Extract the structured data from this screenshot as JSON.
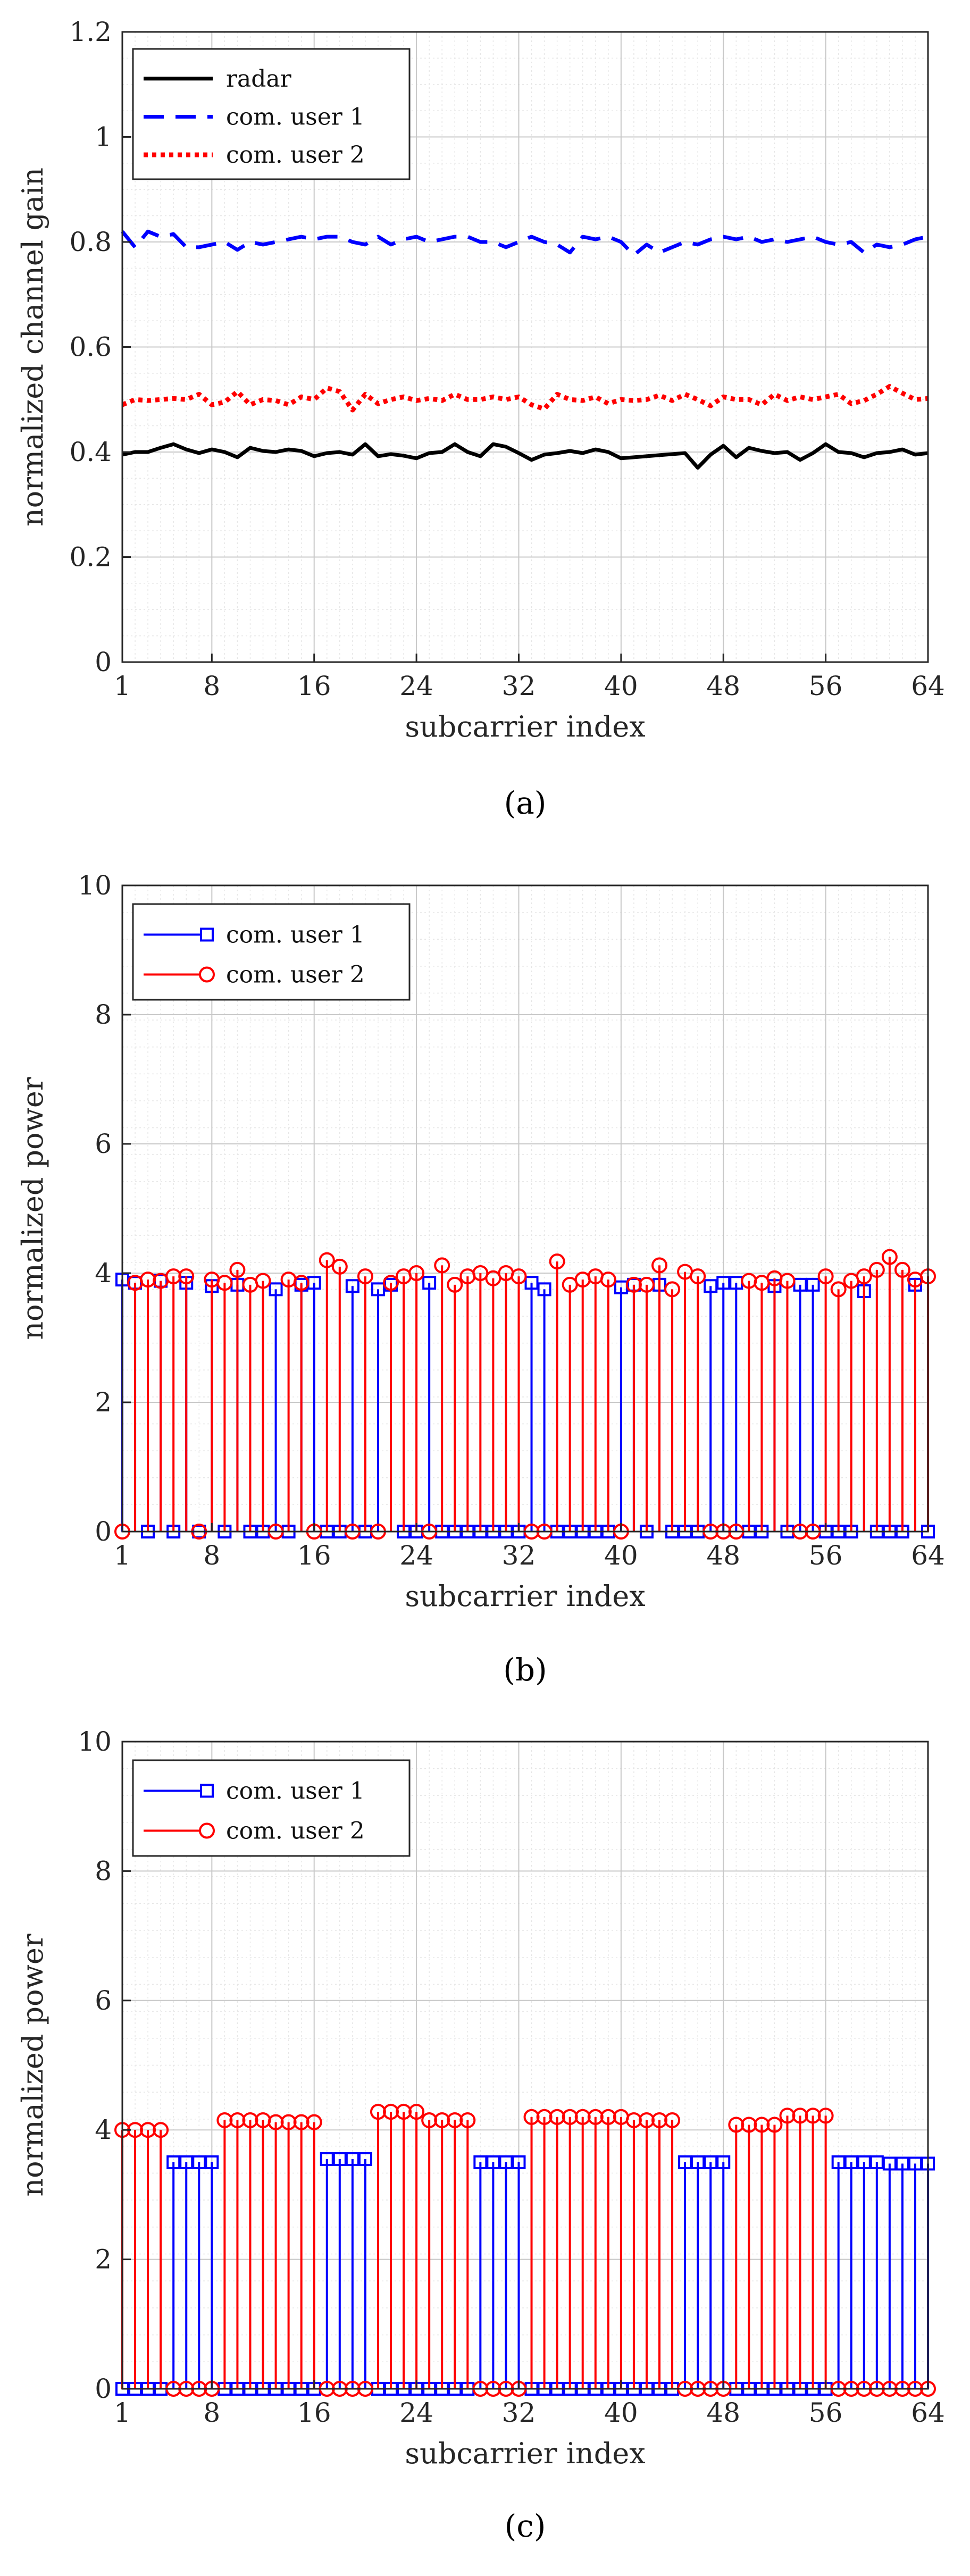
{
  "chart_data": [
    {
      "type": "line",
      "caption": "(a)",
      "xlabel": "subcarrier index",
      "ylabel": "normalized channel gain",
      "xlim": [
        1,
        64
      ],
      "ylim": [
        0,
        1.2
      ],
      "xticks": [
        1,
        8,
        16,
        24,
        32,
        40,
        48,
        56,
        64
      ],
      "yticks": [
        0,
        0.2,
        0.4,
        0.6,
        0.8,
        1,
        1.2
      ],
      "ytick_labels": [
        "0",
        "0.2",
        "0.4",
        "0.6",
        "0.8",
        "1",
        "1.2"
      ],
      "grid": true,
      "legend_position": "top-left",
      "x": [
        1,
        2,
        3,
        4,
        5,
        6,
        7,
        8,
        9,
        10,
        11,
        12,
        13,
        14,
        15,
        16,
        17,
        18,
        19,
        20,
        21,
        22,
        23,
        24,
        25,
        26,
        27,
        28,
        29,
        30,
        31,
        32,
        33,
        34,
        35,
        36,
        37,
        38,
        39,
        40,
        41,
        42,
        43,
        44,
        45,
        46,
        47,
        48,
        49,
        50,
        51,
        52,
        53,
        54,
        55,
        56,
        57,
        58,
        59,
        60,
        61,
        62,
        63,
        64
      ],
      "series": [
        {
          "name": "radar",
          "color": "#000000",
          "style": "solid",
          "values": [
            0.395,
            0.4,
            0.4,
            0.408,
            0.415,
            0.405,
            0.398,
            0.405,
            0.4,
            0.39,
            0.408,
            0.402,
            0.4,
            0.405,
            0.402,
            0.392,
            0.398,
            0.4,
            0.395,
            0.415,
            0.392,
            0.396,
            0.393,
            0.388,
            0.398,
            0.4,
            0.415,
            0.4,
            0.392,
            0.415,
            0.41,
            0.398,
            0.385,
            0.395,
            0.398,
            0.402,
            0.398,
            0.405,
            0.4,
            0.388,
            0.39,
            0.392,
            0.394,
            0.396,
            0.398,
            0.37,
            0.395,
            0.412,
            0.39,
            0.408,
            0.402,
            0.398,
            0.4,
            0.385,
            0.398,
            0.415,
            0.4,
            0.398,
            0.39,
            0.398,
            0.4,
            0.405,
            0.395,
            0.398
          ]
        },
        {
          "name": "com. user 1",
          "color": "#0000ff",
          "style": "dashed",
          "values": [
            0.82,
            0.79,
            0.82,
            0.81,
            0.815,
            0.79,
            0.79,
            0.795,
            0.8,
            0.785,
            0.8,
            0.795,
            0.8,
            0.805,
            0.81,
            0.805,
            0.81,
            0.81,
            0.8,
            0.795,
            0.81,
            0.795,
            0.805,
            0.81,
            0.8,
            0.805,
            0.81,
            0.81,
            0.8,
            0.8,
            0.79,
            0.8,
            0.81,
            0.8,
            0.795,
            0.78,
            0.81,
            0.805,
            0.81,
            0.8,
            0.775,
            0.795,
            0.78,
            0.79,
            0.8,
            0.795,
            0.805,
            0.81,
            0.805,
            0.81,
            0.8,
            0.805,
            0.8,
            0.805,
            0.81,
            0.8,
            0.795,
            0.8,
            0.78,
            0.795,
            0.79,
            0.795,
            0.805,
            0.81
          ]
        },
        {
          "name": "com. user 2",
          "color": "#ff0000",
          "style": "dotted",
          "values": [
            0.49,
            0.5,
            0.498,
            0.5,
            0.502,
            0.5,
            0.51,
            0.49,
            0.495,
            0.515,
            0.49,
            0.5,
            0.498,
            0.49,
            0.505,
            0.5,
            0.522,
            0.515,
            0.48,
            0.51,
            0.492,
            0.5,
            0.505,
            0.498,
            0.502,
            0.498,
            0.51,
            0.5,
            0.5,
            0.505,
            0.5,
            0.505,
            0.49,
            0.482,
            0.51,
            0.5,
            0.498,
            0.505,
            0.492,
            0.5,
            0.498,
            0.5,
            0.508,
            0.498,
            0.51,
            0.5,
            0.488,
            0.505,
            0.5,
            0.5,
            0.49,
            0.51,
            0.498,
            0.505,
            0.5,
            0.505,
            0.51,
            0.492,
            0.498,
            0.51,
            0.525,
            0.512,
            0.5,
            0.502
          ]
        }
      ]
    },
    {
      "type": "stem",
      "caption": "(b)",
      "xlabel": "subcarrier index",
      "ylabel": "normalized power",
      "xlim": [
        1,
        64
      ],
      "ylim": [
        0,
        10
      ],
      "xticks": [
        1,
        8,
        16,
        24,
        32,
        40,
        48,
        56,
        64
      ],
      "yticks": [
        0,
        2,
        4,
        6,
        8,
        10
      ],
      "ytick_labels": [
        "0",
        "2",
        "4",
        "6",
        "8",
        "10"
      ],
      "grid": true,
      "legend_position": "top-left",
      "x": [
        1,
        2,
        3,
        4,
        5,
        6,
        7,
        8,
        9,
        10,
        11,
        12,
        13,
        14,
        15,
        16,
        17,
        18,
        19,
        20,
        21,
        22,
        23,
        24,
        25,
        26,
        27,
        28,
        29,
        30,
        31,
        32,
        33,
        34,
        35,
        36,
        37,
        38,
        39,
        40,
        41,
        42,
        43,
        44,
        45,
        46,
        47,
        48,
        49,
        50,
        51,
        52,
        53,
        54,
        55,
        56,
        57,
        58,
        59,
        60,
        61,
        62,
        63,
        64
      ],
      "series": [
        {
          "name": "com. user 1",
          "color": "#0000ff",
          "marker": "square",
          "values": [
            3.9,
            3.85,
            0,
            3.88,
            0,
            3.85,
            0,
            3.8,
            0,
            3.82,
            0,
            0,
            3.75,
            0,
            3.82,
            3.85,
            0,
            0,
            3.8,
            0,
            3.75,
            3.82,
            0,
            0,
            3.85,
            0,
            0,
            0,
            0,
            0,
            0,
            0,
            3.85,
            3.75,
            0,
            0,
            0,
            0,
            0,
            3.78,
            3.82,
            0,
            3.82,
            0,
            0,
            0,
            3.8,
            3.85,
            3.85,
            0,
            0,
            3.8,
            0,
            3.82,
            3.82,
            0,
            0,
            0,
            3.72,
            0,
            0,
            0,
            3.82,
            0
          ]
        },
        {
          "name": "com. user 2",
          "color": "#ff0000",
          "marker": "circle",
          "values": [
            0,
            3.85,
            3.9,
            3.88,
            3.95,
            3.95,
            0,
            3.9,
            3.85,
            4.05,
            3.82,
            3.88,
            0,
            3.9,
            3.85,
            0,
            4.2,
            4.1,
            0,
            3.95,
            0,
            3.85,
            3.95,
            4.0,
            0,
            4.12,
            3.82,
            3.95,
            4.0,
            3.92,
            4.0,
            3.95,
            0,
            0,
            4.18,
            3.82,
            3.9,
            3.95,
            3.9,
            0,
            3.82,
            3.82,
            4.12,
            3.75,
            4.02,
            3.95,
            0,
            0,
            0,
            3.88,
            3.85,
            3.92,
            3.88,
            0,
            0,
            3.95,
            3.75,
            3.88,
            3.95,
            4.05,
            4.25,
            4.05,
            3.9,
            3.95
          ]
        }
      ]
    },
    {
      "type": "stem",
      "caption": "(c)",
      "xlabel": "subcarrier index",
      "ylabel": "normalized power",
      "xlim": [
        1,
        64
      ],
      "ylim": [
        0,
        10
      ],
      "xticks": [
        1,
        8,
        16,
        24,
        32,
        40,
        48,
        56,
        64
      ],
      "yticks": [
        0,
        2,
        4,
        6,
        8,
        10
      ],
      "ytick_labels": [
        "0",
        "2",
        "4",
        "6",
        "8",
        "10"
      ],
      "grid": true,
      "legend_position": "top-left",
      "x": [
        1,
        2,
        3,
        4,
        5,
        6,
        7,
        8,
        9,
        10,
        11,
        12,
        13,
        14,
        15,
        16,
        17,
        18,
        19,
        20,
        21,
        22,
        23,
        24,
        25,
        26,
        27,
        28,
        29,
        30,
        31,
        32,
        33,
        34,
        35,
        36,
        37,
        38,
        39,
        40,
        41,
        42,
        43,
        44,
        45,
        46,
        47,
        48,
        49,
        50,
        51,
        52,
        53,
        54,
        55,
        56,
        57,
        58,
        59,
        60,
        61,
        62,
        63,
        64
      ],
      "series": [
        {
          "name": "com. user 1",
          "color": "#0000ff",
          "marker": "square",
          "values": [
            0,
            0,
            0,
            0,
            3.5,
            3.5,
            3.5,
            3.5,
            0,
            0,
            0,
            0,
            0,
            0,
            0,
            0,
            3.55,
            3.55,
            3.55,
            3.55,
            0,
            0,
            0,
            0,
            0,
            0,
            0,
            0,
            3.5,
            3.5,
            3.5,
            3.5,
            0,
            0,
            0,
            0,
            0,
            0,
            0,
            0,
            0,
            0,
            0,
            0,
            3.5,
            3.5,
            3.5,
            3.5,
            0,
            0,
            0,
            0,
            0,
            0,
            0,
            0,
            3.5,
            3.5,
            3.5,
            3.5,
            3.48,
            3.48,
            3.48,
            3.48
          ]
        },
        {
          "name": "com. user 2",
          "color": "#ff0000",
          "marker": "circle",
          "values": [
            4.0,
            4.0,
            4.0,
            4.0,
            0,
            0,
            0,
            0,
            4.15,
            4.15,
            4.15,
            4.15,
            4.12,
            4.12,
            4.12,
            4.12,
            0,
            0,
            0,
            0,
            4.28,
            4.28,
            4.28,
            4.28,
            4.15,
            4.15,
            4.15,
            4.15,
            0,
            0,
            0,
            0,
            4.2,
            4.2,
            4.2,
            4.2,
            4.2,
            4.2,
            4.2,
            4.2,
            4.15,
            4.15,
            4.15,
            4.15,
            0,
            0,
            0,
            0,
            4.08,
            4.08,
            4.08,
            4.08,
            4.22,
            4.22,
            4.22,
            4.22,
            0,
            0,
            0,
            0,
            0,
            0,
            0,
            0
          ]
        }
      ]
    }
  ]
}
